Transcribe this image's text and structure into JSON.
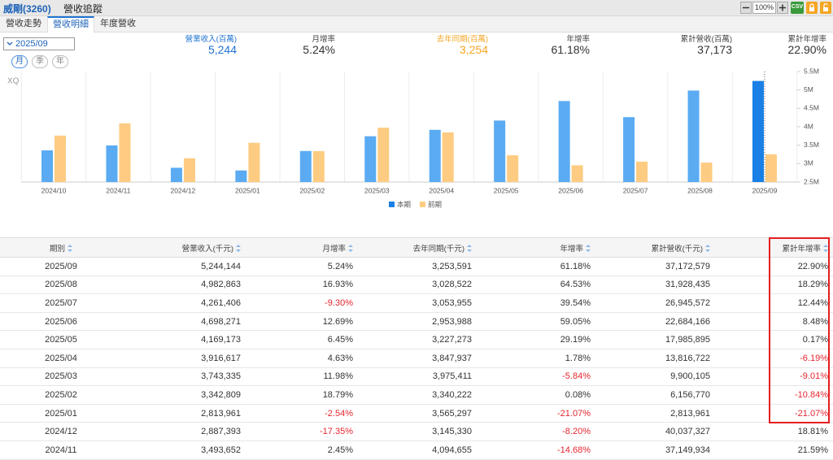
{
  "header": {
    "title": "威剛(3260)",
    "subtitle": "營收追蹤"
  },
  "toolbar": {
    "zoom": "100%",
    "export": "CSV"
  },
  "tabs": [
    "營收走勢",
    "營收明細",
    "年度營收"
  ],
  "controls": {
    "period": "2025/09",
    "frequencies": [
      "月",
      "季",
      "年"
    ]
  },
  "summary": [
    {
      "label": "營業收入(百萬)",
      "value": "5,244"
    },
    {
      "label": "月增率",
      "value": "5.24%"
    },
    {
      "label": "去年同期(百萬)",
      "value": "3,254"
    },
    {
      "label": "年增率",
      "value": "61.18%"
    },
    {
      "label": "累計營收(百萬)",
      "value": "37,173"
    },
    {
      "label": "累計年增率",
      "value": "22.90%"
    }
  ],
  "chart_data": {
    "type": "bar",
    "watermark": "XQ",
    "categories": [
      "2024/10",
      "2024/11",
      "2024/12",
      "2025/01",
      "2025/02",
      "2025/03",
      "2025/04",
      "2025/05",
      "2025/06",
      "2025/07",
      "2025/08",
      "2025/09"
    ],
    "series": [
      {
        "name": "本期",
        "color": "#5aabf2",
        "colors": [
          "#5aabf2",
          "#5aabf2",
          "#5aabf2",
          "#5aabf2",
          "#5aabf2",
          "#5aabf2",
          "#5aabf2",
          "#5aabf2",
          "#5aabf2",
          "#5aabf2",
          "#5aabf2",
          "#1a80e6"
        ],
        "values": [
          3360000,
          3493652,
          2887393,
          2813961,
          3342809,
          3743335,
          3916617,
          4169173,
          4698271,
          4261406,
          4982863,
          5244144
        ]
      },
      {
        "name": "前期",
        "color": "#fdcc82",
        "values": [
          3760000,
          4094655,
          3145330,
          3565297,
          3340222,
          3975411,
          3847937,
          3227273,
          2953988,
          3053955,
          3028522,
          3253591
        ]
      }
    ],
    "ylim": [
      2500000,
      5500000
    ],
    "yticks": [
      {
        "value": 2500000,
        "label": "2.5M"
      },
      {
        "value": 3000000,
        "label": "3M"
      },
      {
        "value": 3500000,
        "label": "3.5M"
      },
      {
        "value": 4000000,
        "label": "4M"
      },
      {
        "value": 4500000,
        "label": "4.5M"
      },
      {
        "value": 5000000,
        "label": "5M"
      },
      {
        "value": 5500000,
        "label": "5.5M"
      }
    ]
  },
  "table": {
    "columns": [
      "期別",
      "營業收入(千元)",
      "月增率",
      "去年同期(千元)",
      "年增率",
      "累計營收(千元)",
      "累計年增率"
    ],
    "rows": [
      [
        "2025/09",
        "5,244,144",
        "5.24%",
        "3,253,591",
        "61.18%",
        "37,172,579",
        "22.90%"
      ],
      [
        "2025/08",
        "4,982,863",
        "16.93%",
        "3,028,522",
        "64.53%",
        "31,928,435",
        "18.29%"
      ],
      [
        "2025/07",
        "4,261,406",
        "-9.30%",
        "3,053,955",
        "39.54%",
        "26,945,572",
        "12.44%"
      ],
      [
        "2025/06",
        "4,698,271",
        "12.69%",
        "2,953,988",
        "59.05%",
        "22,684,166",
        "8.48%"
      ],
      [
        "2025/05",
        "4,169,173",
        "6.45%",
        "3,227,273",
        "29.19%",
        "17,985,895",
        "0.17%"
      ],
      [
        "2025/04",
        "3,916,617",
        "4.63%",
        "3,847,937",
        "1.78%",
        "13,816,722",
        "-6.19%"
      ],
      [
        "2025/03",
        "3,743,335",
        "11.98%",
        "3,975,411",
        "-5.84%",
        "9,900,105",
        "-9.01%"
      ],
      [
        "2025/02",
        "3,342,809",
        "18.79%",
        "3,340,222",
        "0.08%",
        "6,156,770",
        "-10.84%"
      ],
      [
        "2025/01",
        "2,813,961",
        "-2.54%",
        "3,565,297",
        "-21.07%",
        "2,813,961",
        "-21.07%"
      ],
      [
        "2024/12",
        "2,887,393",
        "-17.35%",
        "3,145,330",
        "-8.20%",
        "40,037,327",
        "18.81%"
      ],
      [
        "2024/11",
        "3,493,652",
        "2.45%",
        "4,094,655",
        "-14.68%",
        "37,149,934",
        "21.59%"
      ]
    ]
  }
}
